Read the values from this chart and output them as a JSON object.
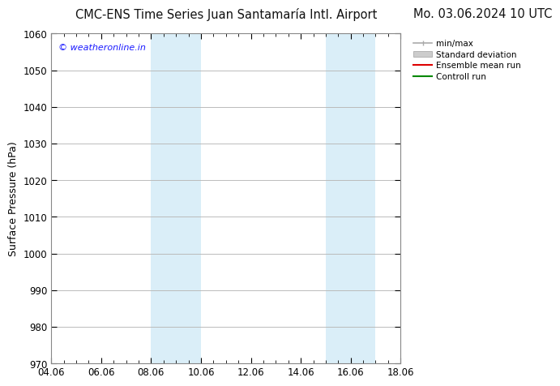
{
  "title_left": "CMC-ENS Time Series Juan Santamaría Intl. Airport",
  "title_right": "Mo. 03.06.2024 10 UTC",
  "ylabel": "Surface Pressure (hPa)",
  "ylim": [
    970,
    1060
  ],
  "yticks": [
    970,
    980,
    990,
    1000,
    1010,
    1020,
    1030,
    1040,
    1050,
    1060
  ],
  "xtick_labels": [
    "04.06",
    "06.06",
    "08.06",
    "10.06",
    "12.06",
    "14.06",
    "16.06",
    "18.06"
  ],
  "xtick_positions": [
    0,
    2,
    4,
    6,
    8,
    10,
    12,
    14
  ],
  "xlim": [
    0,
    14
  ],
  "shade_bands": [
    {
      "start": 4,
      "end": 6,
      "color": "#daeef8"
    },
    {
      "start": 11,
      "end": 13,
      "color": "#daeef8"
    }
  ],
  "copyright_text": "© weatheronline.in",
  "copyright_color": "#1a1aff",
  "bg_color": "#ffffff",
  "plot_bg_color": "#ffffff",
  "grid_color": "#bbbbbb",
  "spine_color": "#888888",
  "title_fontsize": 10.5,
  "axis_label_fontsize": 9,
  "tick_fontsize": 8.5,
  "copyright_fontsize": 8,
  "legend_fontsize": 7.5,
  "minmax_color": "#aaaaaa",
  "std_color": "#cccccc",
  "ensemble_color": "#dd0000",
  "control_color": "#008800"
}
